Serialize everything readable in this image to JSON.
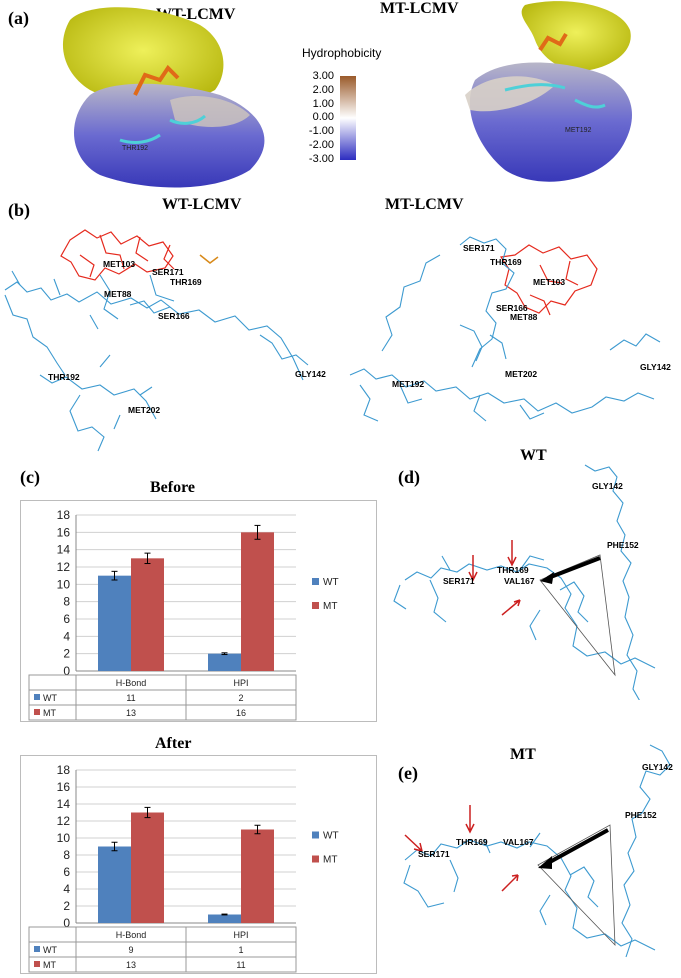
{
  "panels": {
    "a": "(a)",
    "b": "(b)",
    "c": "(c)",
    "d": "(d)",
    "e": "(e)"
  },
  "a": {
    "wt_title": "WT-LCMV",
    "mt_title": "MT-LCMV",
    "legend_title": "Hydrophobicity",
    "legend_ticks": [
      "3.00",
      "2.00",
      "1.00",
      "0.00",
      "-1.00",
      "-2.00",
      "-3.00"
    ],
    "wt_residue": "THR192",
    "mt_residue": "MET192",
    "colors": {
      "ligand": "#d8d81f",
      "hydrophobic": "#9a5a2a",
      "neutral": "#ffffff",
      "hydrophilic": "#2d2dc0"
    }
  },
  "b": {
    "wt_title": "WT-LCMV",
    "mt_title": "MT-LCMV",
    "wt_residues": [
      "MET103",
      "SER171",
      "THR169",
      "MET88",
      "SER166",
      "THR192",
      "MET202",
      "GLY142"
    ],
    "mt_residues": [
      "SER171",
      "THR169",
      "MET103",
      "SER166",
      "MET88",
      "MET192",
      "MET202",
      "GLY142"
    ],
    "colors": {
      "protein": "#3d9ad0",
      "ligand": "#e52a1e",
      "highlight": "#d88a1a"
    }
  },
  "chart_data": [
    {
      "type": "bar",
      "title": "Before",
      "categories": [
        "H-Bond",
        "HPI"
      ],
      "series": [
        {
          "name": "WT",
          "values": [
            11,
            2
          ],
          "errors": [
            0.5,
            0.1
          ],
          "color": "#4f81bd"
        },
        {
          "name": "MT",
          "values": [
            13,
            16
          ],
          "errors": [
            0.6,
            0.8
          ],
          "color": "#c0504d"
        }
      ],
      "ylim": [
        0,
        18
      ],
      "yticks": [
        0,
        2,
        4,
        6,
        8,
        10,
        12,
        14,
        16,
        18
      ],
      "grid": true,
      "legend": "right",
      "table": [
        [
          "WT",
          "11",
          "2"
        ],
        [
          "MT",
          "13",
          "16"
        ]
      ]
    },
    {
      "type": "bar",
      "title": "After",
      "categories": [
        "H-Bond",
        "HPI"
      ],
      "series": [
        {
          "name": "WT",
          "values": [
            9,
            1
          ],
          "errors": [
            0.5,
            0.05
          ],
          "color": "#4f81bd"
        },
        {
          "name": "MT",
          "values": [
            13,
            11
          ],
          "errors": [
            0.6,
            0.5
          ],
          "color": "#c0504d"
        }
      ],
      "ylim": [
        0,
        18
      ],
      "yticks": [
        0,
        2,
        4,
        6,
        8,
        10,
        12,
        14,
        16,
        18
      ],
      "grid": true,
      "legend": "right",
      "table": [
        [
          "WT",
          "9",
          "1"
        ],
        [
          "MT",
          "13",
          "11"
        ]
      ]
    }
  ],
  "d": {
    "title": "WT",
    "residues": [
      "GLY142",
      "PHE152",
      "SER171",
      "THR169",
      "VAL167"
    ]
  },
  "e": {
    "title": "MT",
    "residues": [
      "GLY142",
      "PHE152",
      "THR169",
      "VAL167",
      "SER171"
    ]
  }
}
